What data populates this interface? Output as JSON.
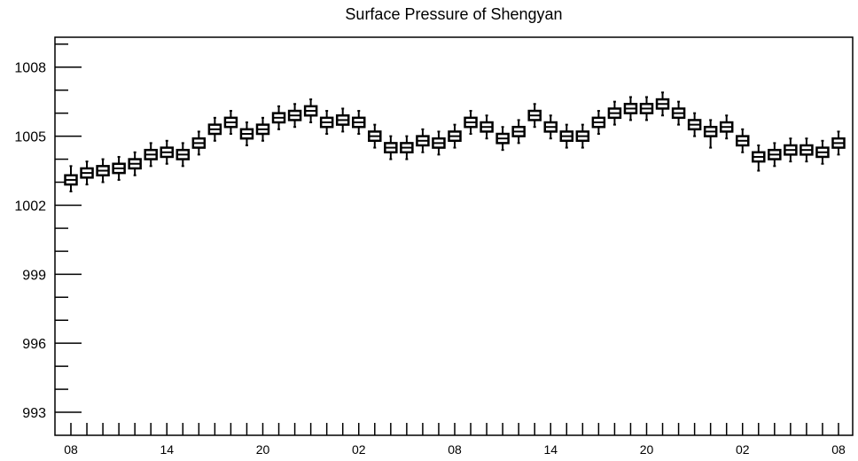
{
  "chart_data": {
    "type": "boxplot",
    "title": "Surface Pressure of Shengyan",
    "xlabel": "",
    "ylabel": "",
    "ylim": [
      992,
      1009.3
    ],
    "y_ticks": [
      993,
      996,
      999,
      1002,
      1005,
      1008
    ],
    "y_tick_labels": [
      "993",
      "996",
      "999",
      "1002",
      "1005",
      "1008"
    ],
    "x_tick_labels": [
      "08",
      "14",
      "20",
      "02",
      "08",
      "14",
      "20",
      "02",
      "08"
    ],
    "x_tick_label_hours": [
      0,
      6,
      12,
      18,
      24,
      30,
      36,
      42,
      48
    ],
    "hours": [
      0,
      1,
      2,
      3,
      4,
      5,
      6,
      7,
      8,
      9,
      10,
      11,
      12,
      13,
      14,
      15,
      16,
      17,
      18,
      19,
      20,
      21,
      22,
      23,
      24,
      25,
      26,
      27,
      28,
      29,
      30,
      31,
      32,
      33,
      34,
      35,
      36,
      37,
      38,
      39,
      40,
      41,
      42,
      43,
      44,
      45,
      46,
      47,
      48
    ],
    "median": [
      1003.1,
      1003.4,
      1003.5,
      1003.6,
      1003.8,
      1004.2,
      1004.3,
      1004.2,
      1004.7,
      1005.3,
      1005.6,
      1005.1,
      1005.3,
      1005.8,
      1005.9,
      1006.1,
      1005.6,
      1005.7,
      1005.6,
      1005.0,
      1004.5,
      1004.5,
      1004.8,
      1004.7,
      1005.0,
      1005.6,
      1005.4,
      1004.9,
      1005.2,
      1005.9,
      1005.4,
      1005.0,
      1005.0,
      1005.6,
      1006.0,
      1006.2,
      1006.2,
      1006.4,
      1006.0,
      1005.5,
      1005.2,
      1005.4,
      1004.8,
      1004.1,
      1004.2,
      1004.4,
      1004.4,
      1004.3,
      1004.7
    ],
    "q1": [
      1002.9,
      1003.2,
      1003.3,
      1003.4,
      1003.6,
      1004.0,
      1004.1,
      1004.0,
      1004.5,
      1005.1,
      1005.4,
      1004.9,
      1005.1,
      1005.6,
      1005.7,
      1005.9,
      1005.4,
      1005.5,
      1005.4,
      1004.8,
      1004.3,
      1004.3,
      1004.6,
      1004.5,
      1004.8,
      1005.4,
      1005.2,
      1004.7,
      1005.0,
      1005.7,
      1005.2,
      1004.8,
      1004.8,
      1005.4,
      1005.8,
      1006.0,
      1006.0,
      1006.2,
      1005.8,
      1005.3,
      1005.0,
      1005.2,
      1004.6,
      1003.9,
      1004.0,
      1004.2,
      1004.2,
      1004.1,
      1004.5
    ],
    "q3": [
      1003.3,
      1003.6,
      1003.7,
      1003.8,
      1004.0,
      1004.4,
      1004.5,
      1004.4,
      1004.9,
      1005.5,
      1005.8,
      1005.3,
      1005.5,
      1006.0,
      1006.1,
      1006.3,
      1005.8,
      1005.9,
      1005.8,
      1005.2,
      1004.7,
      1004.7,
      1005.0,
      1004.9,
      1005.2,
      1005.8,
      1005.6,
      1005.1,
      1005.4,
      1006.1,
      1005.6,
      1005.2,
      1005.2,
      1005.8,
      1006.2,
      1006.4,
      1006.4,
      1006.6,
      1006.2,
      1005.7,
      1005.4,
      1005.6,
      1005.0,
      1004.3,
      1004.4,
      1004.6,
      1004.6,
      1004.5,
      1004.9
    ],
    "whisker_low": [
      1002.6,
      1002.9,
      1003.0,
      1003.1,
      1003.3,
      1003.7,
      1003.8,
      1003.7,
      1004.2,
      1004.8,
      1005.1,
      1004.6,
      1004.8,
      1005.3,
      1005.4,
      1005.6,
      1005.1,
      1005.2,
      1005.1,
      1004.5,
      1004.0,
      1004.0,
      1004.3,
      1004.2,
      1004.5,
      1005.1,
      1004.9,
      1004.4,
      1004.7,
      1005.4,
      1004.9,
      1004.5,
      1004.5,
      1005.1,
      1005.5,
      1005.7,
      1005.7,
      1005.9,
      1005.5,
      1005.0,
      1004.5,
      1004.9,
      1004.3,
      1003.5,
      1003.7,
      1003.9,
      1003.9,
      1003.8,
      1004.2
    ],
    "whisker_high": [
      1003.7,
      1003.9,
      1004.0,
      1004.1,
      1004.3,
      1004.7,
      1004.8,
      1004.7,
      1005.2,
      1005.8,
      1006.1,
      1005.6,
      1005.8,
      1006.3,
      1006.4,
      1006.6,
      1006.1,
      1006.2,
      1006.1,
      1005.5,
      1005.0,
      1005.0,
      1005.3,
      1005.2,
      1005.5,
      1006.1,
      1005.9,
      1005.4,
      1005.7,
      1006.4,
      1005.9,
      1005.5,
      1005.5,
      1006.1,
      1006.5,
      1006.7,
      1006.7,
      1006.9,
      1006.5,
      1006.0,
      1005.7,
      1005.9,
      1005.3,
      1004.6,
      1004.7,
      1004.9,
      1004.9,
      1004.8,
      1005.2
    ],
    "grid": false,
    "legend": "none"
  }
}
